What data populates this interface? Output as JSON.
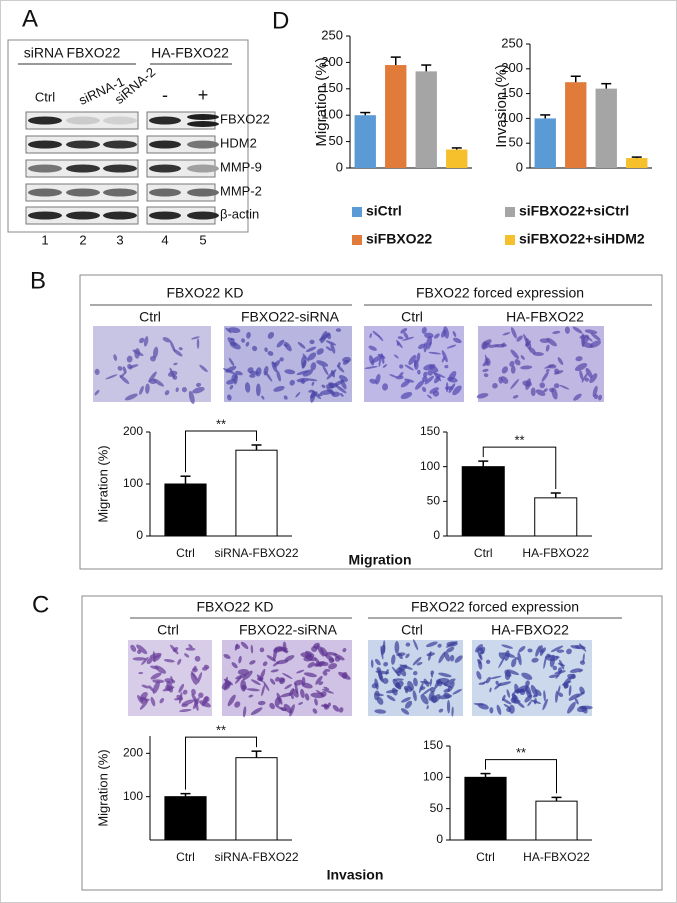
{
  "panel_labels": [
    "A",
    "B",
    "C",
    "D"
  ],
  "blot": {
    "group_labels": [
      "siRNA FBXO22",
      "HA-FBXO22"
    ],
    "lane_labels": [
      "Ctrl",
      "siRNA-1",
      "siRNA-2",
      "-",
      "+"
    ],
    "proteins": [
      "FBXO22",
      "HDM2",
      "MMP-9",
      "MMP-2",
      "β-actin"
    ],
    "lane_numbers": [
      "1",
      "2",
      "3",
      "4",
      "5"
    ]
  },
  "panel_b": {
    "headers": [
      "FBXO22 KD",
      "FBXO22 forced expression"
    ],
    "image_labels": [
      "Ctrl",
      "FBXO22-siRNA",
      "Ctrl",
      "HA-FBXO22"
    ],
    "caption": "Migration"
  },
  "panel_c": {
    "headers": [
      "FBXO22 KD",
      "FBXO22 forced expression"
    ],
    "image_labels": [
      "Ctrl",
      "FBXO22-siRNA",
      "Ctrl",
      "HA-FBXO22"
    ],
    "caption": "Invasion"
  },
  "chart_data": [
    {
      "type": "bar",
      "ylabel": "Migration (%)",
      "ylim": [
        0,
        250
      ],
      "yticks": [
        0,
        50,
        100,
        150,
        200,
        250
      ],
      "series": [
        {
          "name": "siCtrl",
          "color": "#5b9bd5",
          "values": [
            100
          ],
          "errors": [
            5
          ]
        },
        {
          "name": "siFBXO22",
          "color": "#e07b39",
          "values": [
            195
          ],
          "errors": [
            15
          ]
        },
        {
          "name": "siFBXO22+siCtrl",
          "color": "#a5a5a5",
          "values": [
            183
          ],
          "errors": [
            12
          ]
        },
        {
          "name": "siFBXO22+siHDM2",
          "color": "#f5c02c",
          "values": [
            35
          ],
          "errors": [
            3
          ]
        }
      ]
    },
    {
      "type": "bar",
      "ylabel": "Invasion (%)",
      "ylim": [
        0,
        250
      ],
      "yticks": [
        0,
        50,
        100,
        150,
        200,
        250
      ],
      "series": [
        {
          "color": "#5b9bd5",
          "values": [
            100
          ],
          "errors": [
            7
          ]
        },
        {
          "color": "#e07b39",
          "values": [
            173
          ],
          "errors": [
            12
          ]
        },
        {
          "color": "#a5a5a5",
          "values": [
            160
          ],
          "errors": [
            10
          ]
        },
        {
          "color": "#f5c02c",
          "values": [
            20
          ],
          "errors": [
            2
          ]
        }
      ]
    },
    {
      "type": "bar",
      "ylabel": "Migration (%)",
      "categories": [
        "Ctrl",
        "siRNA-FBXO22"
      ],
      "values": [
        100,
        165
      ],
      "errors": [
        15,
        10
      ],
      "colors": [
        "#000000",
        "#ffffff"
      ],
      "ylim": [
        0,
        200
      ],
      "yticks": [
        0,
        100,
        200
      ],
      "annotation": "**"
    },
    {
      "type": "bar",
      "categories": [
        "Ctrl",
        "HA-FBXO22"
      ],
      "values": [
        100,
        55
      ],
      "errors": [
        8,
        7
      ],
      "colors": [
        "#000000",
        "#ffffff"
      ],
      "ylim": [
        0,
        150
      ],
      "yticks": [
        0,
        50,
        100,
        150
      ],
      "annotation": "**"
    },
    {
      "type": "bar",
      "ylabel": "Migration (%)",
      "categories": [
        "Ctrl",
        "siRNA-FBXO22"
      ],
      "values": [
        100,
        190
      ],
      "errors": [
        7,
        15
      ],
      "colors": [
        "#000000",
        "#ffffff"
      ],
      "ylim": [
        0,
        240
      ],
      "yticks": [
        100,
        200
      ],
      "annotation": "**"
    },
    {
      "type": "bar",
      "categories": [
        "Ctrl",
        "HA-FBXO22"
      ],
      "values": [
        100,
        62
      ],
      "errors": [
        6,
        6
      ],
      "colors": [
        "#000000",
        "#ffffff"
      ],
      "ylim": [
        0,
        150
      ],
      "yticks": [
        0,
        50,
        100,
        150
      ],
      "annotation": "**"
    }
  ]
}
